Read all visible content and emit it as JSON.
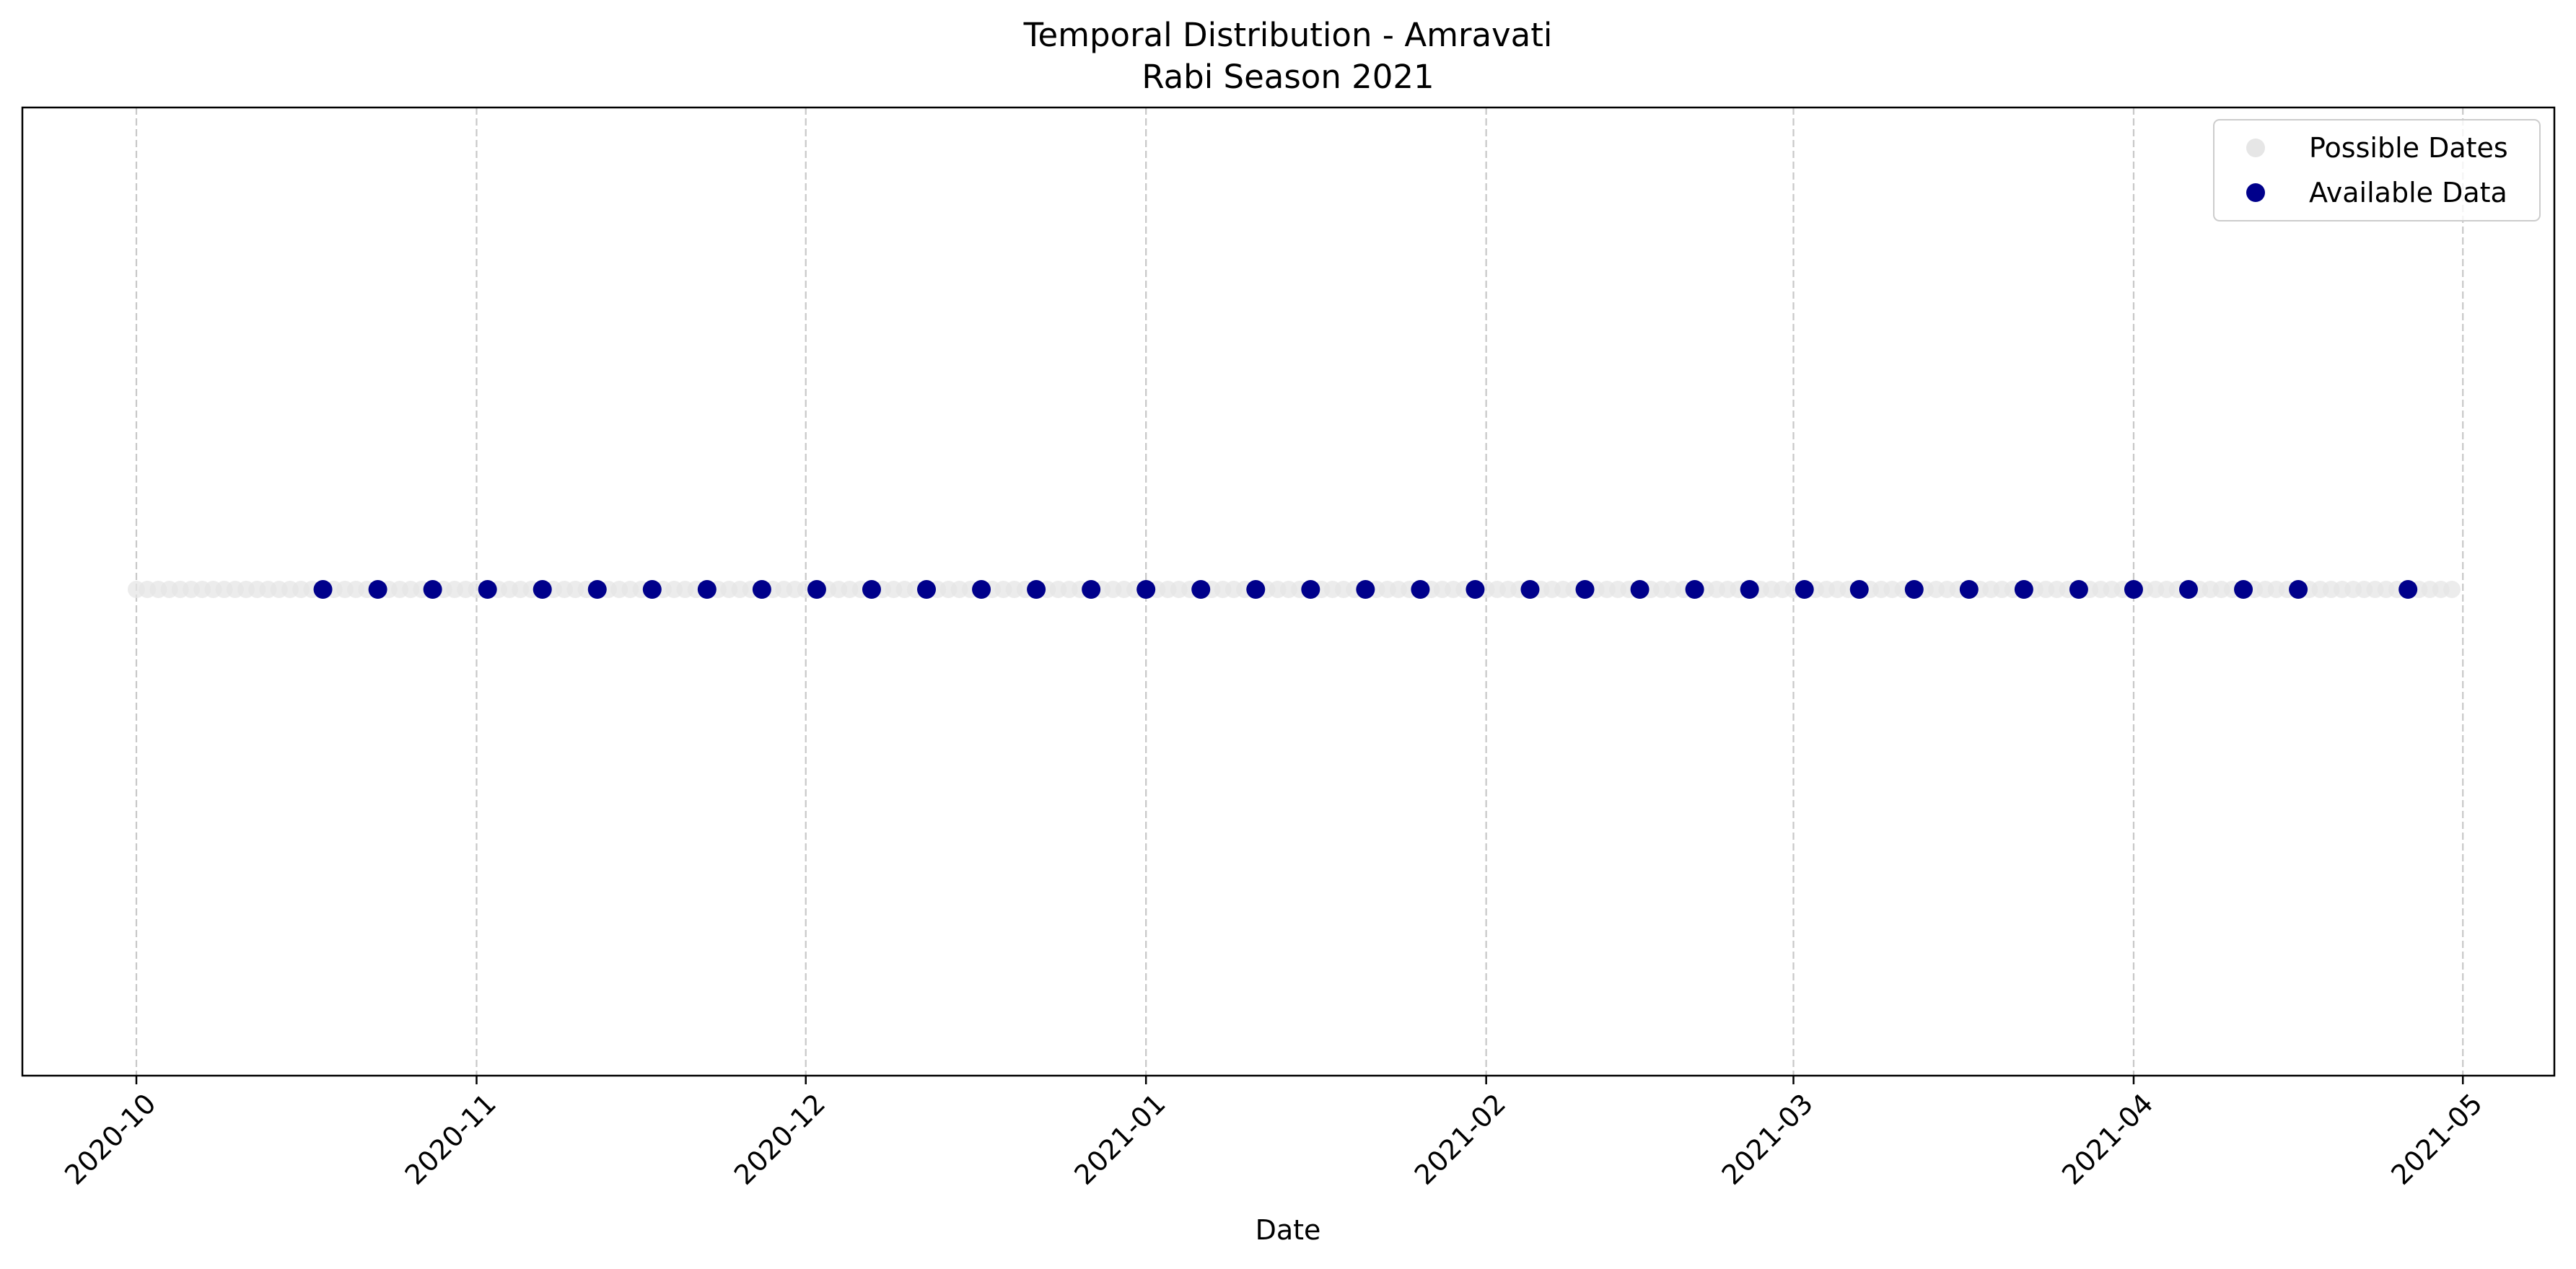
{
  "chart_data": {
    "type": "scatter",
    "title": "Temporal Distribution - Amravati",
    "subtitle": "Rabi Season 2021",
    "xlabel": "Date",
    "ylabel": "",
    "x_axis": {
      "type": "date",
      "range": [
        "2020-10-01",
        "2021-04-30"
      ],
      "ticks": [
        "2020-10-01",
        "2020-11-01",
        "2020-12-01",
        "2021-01-01",
        "2021-02-01",
        "2021-03-01",
        "2021-04-01",
        "2021-05-01"
      ],
      "tick_labels": [
        "2020-10",
        "2020-11",
        "2020-12",
        "2021-01",
        "2021-02",
        "2021-03",
        "2021-04",
        "2021-05"
      ],
      "tick_label_rotation": -45
    },
    "y_axis": {
      "ticks_visible": false
    },
    "grid": {
      "x": true,
      "y": false,
      "style": "dashed"
    },
    "legend": {
      "placement": "top-right"
    },
    "series": [
      {
        "name": "Possible Dates",
        "color": "#e6e6e6",
        "marker": "circle",
        "dates_from": "2020-10-01",
        "dates_to": "2021-04-30",
        "frequency": "daily"
      },
      {
        "name": "Available Data",
        "color": "#00008b",
        "marker": "circle",
        "dates": [
          "2020-10-18",
          "2020-10-23",
          "2020-10-28",
          "2020-11-02",
          "2020-11-07",
          "2020-11-12",
          "2020-11-17",
          "2020-11-22",
          "2020-11-27",
          "2020-12-02",
          "2020-12-07",
          "2020-12-12",
          "2020-12-17",
          "2020-12-22",
          "2020-12-27",
          "2021-01-01",
          "2021-01-06",
          "2021-01-11",
          "2021-01-16",
          "2021-01-21",
          "2021-01-26",
          "2021-01-31",
          "2021-02-05",
          "2021-02-10",
          "2021-02-15",
          "2021-02-20",
          "2021-02-25",
          "2021-03-02",
          "2021-03-07",
          "2021-03-12",
          "2021-03-17",
          "2021-03-22",
          "2021-03-27",
          "2021-04-01",
          "2021-04-06",
          "2021-04-11",
          "2021-04-16",
          "2021-04-26"
        ]
      }
    ]
  }
}
